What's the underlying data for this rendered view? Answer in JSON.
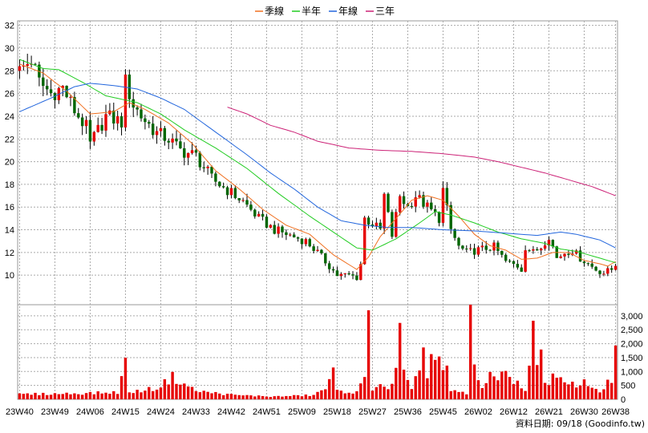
{
  "chart_data": {
    "type": "candlestick",
    "legend": [
      {
        "label": "季線",
        "color": "#f07020"
      },
      {
        "label": "半年",
        "color": "#22cc22"
      },
      {
        "label": "年線",
        "color": "#2266dd"
      },
      {
        "label": "三年",
        "color": "#cc2277"
      }
    ],
    "price_axis": {
      "min": 7.4,
      "max": 32.4,
      "ticks": [
        10,
        12,
        14,
        16,
        18,
        20,
        22,
        24,
        26,
        28,
        30,
        32
      ]
    },
    "volume_axis": {
      "min": 0,
      "max": 3400,
      "ticks": [
        0,
        500,
        1000,
        1500,
        2000,
        2500,
        3000
      ],
      "tick_labels": [
        "0",
        "500",
        "1,000",
        "1,500",
        "2,000",
        "2,500",
        "3,000"
      ]
    },
    "x_labels": [
      {
        "label": "23W40",
        "index": 0
      },
      {
        "label": "23W49",
        "index": 9
      },
      {
        "label": "24W06",
        "index": 18
      },
      {
        "label": "24W15",
        "index": 27
      },
      {
        "label": "24W24",
        "index": 36
      },
      {
        "label": "24W33",
        "index": 45
      },
      {
        "label": "24W42",
        "index": 54
      },
      {
        "label": "24W51",
        "index": 63
      },
      {
        "label": "25W09",
        "index": 72
      },
      {
        "label": "25W18",
        "index": 81
      },
      {
        "label": "25W27",
        "index": 90
      },
      {
        "label": "25W36",
        "index": 99
      },
      {
        "label": "25W45",
        "index": 108
      },
      {
        "label": "26W02",
        "index": 117
      },
      {
        "label": "26W12",
        "index": 126
      },
      {
        "label": "26W21",
        "index": 135
      },
      {
        "label": "26W30",
        "index": 144
      },
      {
        "label": "26W38",
        "index": 152
      }
    ],
    "bar_count": 153,
    "price_path": [
      [
        0,
        28
      ],
      [
        3,
        29
      ],
      [
        5,
        27
      ],
      [
        8,
        26
      ],
      [
        11,
        26.5
      ],
      [
        14,
        24.5
      ],
      [
        17,
        23
      ],
      [
        18,
        21.5
      ],
      [
        22,
        24
      ],
      [
        26,
        23.5
      ],
      [
        27,
        27
      ],
      [
        29,
        25
      ],
      [
        31,
        24
      ],
      [
        35,
        22.5
      ],
      [
        38,
        22
      ],
      [
        41,
        21
      ],
      [
        45,
        20.5
      ],
      [
        49,
        18.5
      ],
      [
        53,
        17.5
      ],
      [
        57,
        16.5
      ],
      [
        61,
        15
      ],
      [
        65,
        14
      ],
      [
        69,
        13.5
      ],
      [
        73,
        13
      ],
      [
        76,
        12
      ],
      [
        79,
        10.8
      ],
      [
        81,
        10
      ],
      [
        84,
        10
      ],
      [
        86,
        9.8
      ],
      [
        87,
        11
      ],
      [
        88,
        15
      ],
      [
        92,
        14
      ],
      [
        93,
        17
      ],
      [
        95,
        13.5
      ],
      [
        97,
        17
      ],
      [
        99,
        16
      ],
      [
        101,
        17
      ],
      [
        104,
        16
      ],
      [
        107,
        15
      ],
      [
        108,
        17.5
      ],
      [
        110,
        14
      ],
      [
        112,
        12.5
      ],
      [
        114,
        12
      ],
      [
        118,
        12.3
      ],
      [
        121,
        12.5
      ],
      [
        124,
        11.2
      ],
      [
        127,
        10.8
      ],
      [
        128,
        10.5
      ],
      [
        129,
        12.5
      ],
      [
        131,
        12
      ],
      [
        133,
        12.5
      ],
      [
        135,
        13.5
      ],
      [
        137,
        11.5
      ],
      [
        139,
        12
      ],
      [
        141,
        12.2
      ],
      [
        143,
        11.5
      ],
      [
        145,
        11
      ],
      [
        147,
        10.5
      ],
      [
        149,
        10.2
      ],
      [
        151,
        10.5
      ],
      [
        152,
        11
      ]
    ],
    "volume_path": [
      [
        0,
        180
      ],
      [
        10,
        200
      ],
      [
        20,
        230
      ],
      [
        25,
        250
      ],
      [
        27,
        1300
      ],
      [
        28,
        250
      ],
      [
        35,
        400
      ],
      [
        39,
        800
      ],
      [
        45,
        300
      ],
      [
        55,
        150
      ],
      [
        65,
        100
      ],
      [
        75,
        150
      ],
      [
        78,
        400
      ],
      [
        80,
        950
      ],
      [
        81,
        300
      ],
      [
        86,
        250
      ],
      [
        88,
        700
      ],
      [
        89,
        2800
      ],
      [
        90,
        400
      ],
      [
        92,
        600
      ],
      [
        94,
        300
      ],
      [
        96,
        1000
      ],
      [
        97,
        2450
      ],
      [
        98,
        900
      ],
      [
        100,
        300
      ],
      [
        102,
        1050
      ],
      [
        103,
        2350
      ],
      [
        104,
        700
      ],
      [
        105,
        1700
      ],
      [
        106,
        1500
      ],
      [
        107,
        1450
      ],
      [
        108,
        1000
      ],
      [
        109,
        1000
      ],
      [
        110,
        300
      ],
      [
        114,
        200
      ],
      [
        115,
        3100
      ],
      [
        116,
        1200
      ],
      [
        117,
        700
      ],
      [
        118,
        350
      ],
      [
        120,
        1100
      ],
      [
        122,
        600
      ],
      [
        124,
        1000
      ],
      [
        126,
        700
      ],
      [
        128,
        500
      ],
      [
        129,
        300
      ],
      [
        130,
        1000
      ],
      [
        131,
        3350
      ],
      [
        132,
        1200
      ],
      [
        133,
        2300
      ],
      [
        134,
        500
      ],
      [
        136,
        800
      ],
      [
        140,
        500
      ],
      [
        144,
        600
      ],
      [
        148,
        300
      ],
      [
        151,
        700
      ],
      [
        152,
        1800
      ]
    ],
    "ma_quarter": [
      [
        0,
        28.6
      ],
      [
        6,
        27.8
      ],
      [
        12,
        26.2
      ],
      [
        18,
        24.2
      ],
      [
        24,
        24.4
      ],
      [
        28,
        25.2
      ],
      [
        32,
        24.6
      ],
      [
        38,
        23.4
      ],
      [
        44,
        21.6
      ],
      [
        50,
        19.2
      ],
      [
        56,
        17.6
      ],
      [
        62,
        15.8
      ],
      [
        68,
        14.4
      ],
      [
        74,
        13.6
      ],
      [
        80,
        11.8
      ],
      [
        86,
        10.5
      ],
      [
        89,
        11.6
      ],
      [
        92,
        13.4
      ],
      [
        96,
        15.0
      ],
      [
        100,
        16.6
      ],
      [
        104,
        17.0
      ],
      [
        108,
        16.6
      ],
      [
        112,
        15.2
      ],
      [
        116,
        13.6
      ],
      [
        120,
        12.6
      ],
      [
        124,
        12.2
      ],
      [
        128,
        11.4
      ],
      [
        132,
        11.5
      ],
      [
        136,
        12.0
      ],
      [
        140,
        12.0
      ],
      [
        144,
        11.3
      ],
      [
        148,
        11.0
      ],
      [
        150,
        10.8
      ],
      [
        152,
        11.2
      ]
    ],
    "ma_half": [
      [
        0,
        29.0
      ],
      [
        6,
        28.2
      ],
      [
        10,
        28.1
      ],
      [
        16,
        27.0
      ],
      [
        22,
        25.8
      ],
      [
        30,
        25.2
      ],
      [
        36,
        24.2
      ],
      [
        42,
        22.8
      ],
      [
        50,
        21.2
      ],
      [
        58,
        19.4
      ],
      [
        66,
        17.2
      ],
      [
        74,
        15.2
      ],
      [
        80,
        13.8
      ],
      [
        86,
        12.4
      ],
      [
        90,
        12.2
      ],
      [
        96,
        13.2
      ],
      [
        102,
        14.6
      ],
      [
        106,
        15.6
      ],
      [
        110,
        15.3
      ],
      [
        116,
        14.6
      ],
      [
        122,
        13.8
      ],
      [
        128,
        13.2
      ],
      [
        134,
        12.8
      ],
      [
        138,
        12.3
      ],
      [
        142,
        12.1
      ],
      [
        146,
        11.7
      ],
      [
        150,
        11.3
      ],
      [
        152,
        11.1
      ]
    ],
    "ma_year": [
      [
        0,
        24.4
      ],
      [
        8,
        25.6
      ],
      [
        14,
        26.6
      ],
      [
        18,
        26.9
      ],
      [
        24,
        26.7
      ],
      [
        30,
        26.4
      ],
      [
        36,
        25.6
      ],
      [
        42,
        24.6
      ],
      [
        50,
        22.6
      ],
      [
        58,
        20.6
      ],
      [
        64,
        19.0
      ],
      [
        70,
        17.6
      ],
      [
        76,
        16.0
      ],
      [
        82,
        14.8
      ],
      [
        88,
        14.4
      ],
      [
        94,
        14.2
      ],
      [
        100,
        14.2
      ],
      [
        108,
        14.0
      ],
      [
        116,
        13.9
      ],
      [
        124,
        13.7
      ],
      [
        132,
        13.5
      ],
      [
        138,
        13.8
      ],
      [
        142,
        13.6
      ],
      [
        148,
        13.1
      ],
      [
        152,
        12.4
      ]
    ],
    "ma_3year": [
      [
        53,
        24.8
      ],
      [
        58,
        24.2
      ],
      [
        64,
        23.2
      ],
      [
        70,
        22.6
      ],
      [
        76,
        21.8
      ],
      [
        84,
        21.2
      ],
      [
        92,
        21.0
      ],
      [
        100,
        20.9
      ],
      [
        108,
        20.7
      ],
      [
        116,
        20.4
      ],
      [
        122,
        20.0
      ],
      [
        128,
        19.5
      ],
      [
        134,
        19.0
      ],
      [
        140,
        18.4
      ],
      [
        146,
        17.8
      ],
      [
        152,
        17.0
      ]
    ],
    "up_color": "#e60000",
    "down_color": "#006600",
    "volume_color": "#e60000",
    "footer": "資料日期: 09/18  (Goodinfo.tw)"
  }
}
